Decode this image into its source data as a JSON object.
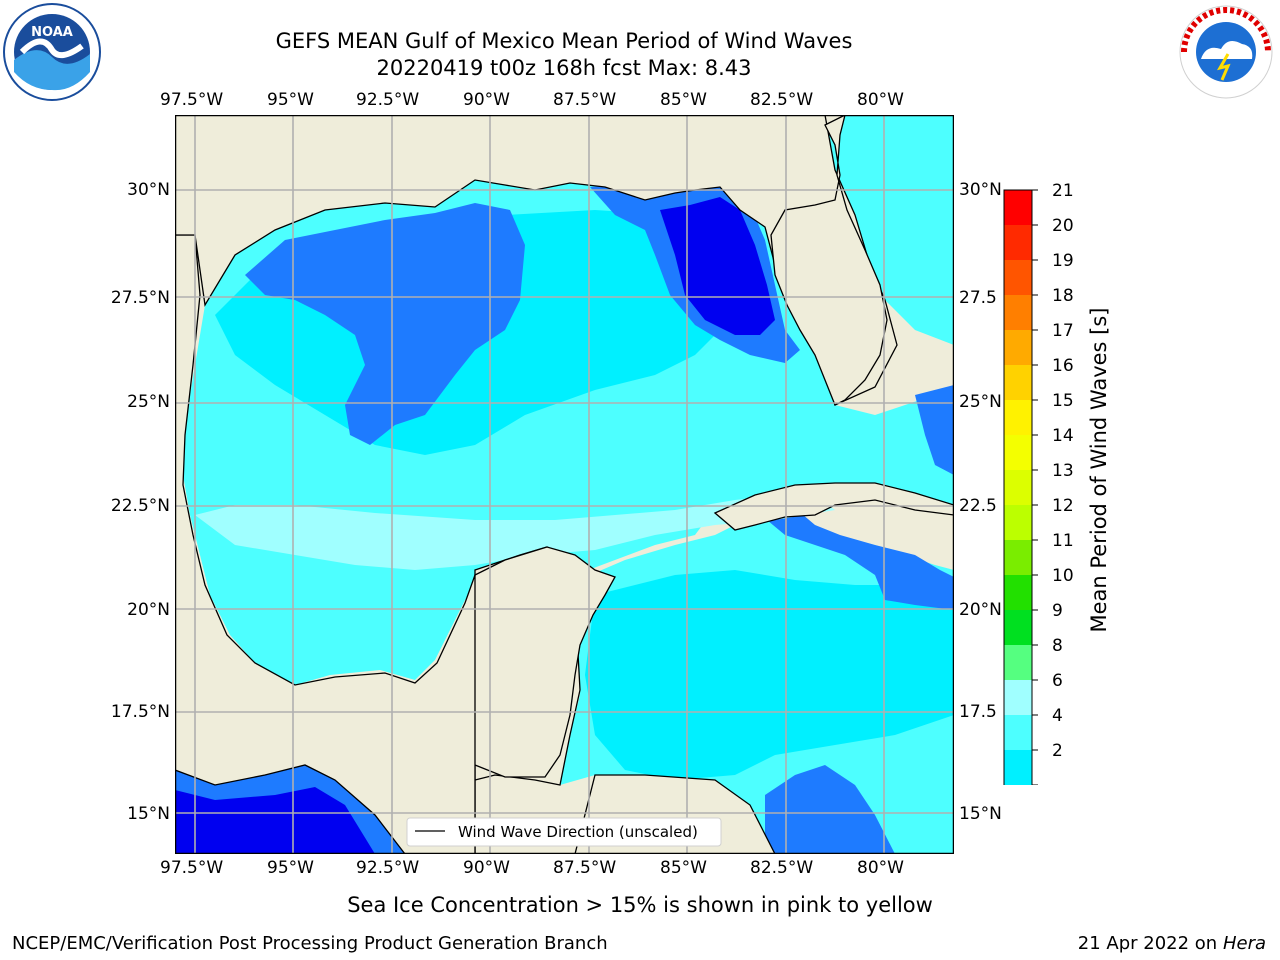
{
  "header": {
    "title_line1": "GEFS MEAN Gulf of Mexico Mean Period of Wind Waves",
    "title_line2": "20220419 t00z 168h fcst   Max: 8.43"
  },
  "map": {
    "lon_ticks": [
      "97.5°W",
      "95°W",
      "92.5°W",
      "90°W",
      "87.5°W",
      "85°W",
      "82.5°W",
      "80°W"
    ],
    "lat_ticks_left": [
      "30°N",
      "27.5°N",
      "25°N",
      "22.5°N",
      "20°N",
      "17.5°N",
      "15°N"
    ],
    "lat_ticks_right": [
      "30°N",
      "27.5",
      "25°N",
      "22.5",
      "20°N",
      "17.5",
      "15°N"
    ],
    "legend_label": "Wind Wave Direction (unscaled)",
    "colors": {
      "land": "#efedda",
      "ocean_light": "#4dffff",
      "ocean_mid": "#00f0ff",
      "ocean_blue": "#1e7bff",
      "ocean_deep": "#0000f0",
      "arrow": "#ff0000"
    }
  },
  "colorbar": {
    "label": "Mean Period of Wind Waves [s]",
    "ticks": [
      "21",
      "20",
      "19",
      "18",
      "17",
      "16",
      "15",
      "14",
      "13",
      "12",
      "11",
      "10",
      "9",
      "8",
      "6",
      "4",
      "2"
    ],
    "colors": [
      "#ff0000",
      "#ff2a00",
      "#ff5500",
      "#ff7f00",
      "#ffaa00",
      "#ffd200",
      "#fff200",
      "#f4ff00",
      "#dcff00",
      "#bcff00",
      "#7aed00",
      "#22e000",
      "#00e020",
      "#55ff80",
      "#a0ffff",
      "#4dffff",
      "#00f0ff",
      "#1e7bff"
    ],
    "under_color": "#0000f0"
  },
  "note": "Sea Ice Concentration > 15% is shown in pink to yellow",
  "footer": {
    "left": "NCEP/EMC/Verification Post Processing Product Generation Branch",
    "date": "21 Apr 2022 on ",
    "host": "Hera"
  },
  "logos": {
    "left": "NOAA",
    "right": "NATIONAL WEATHER SERVICE"
  }
}
